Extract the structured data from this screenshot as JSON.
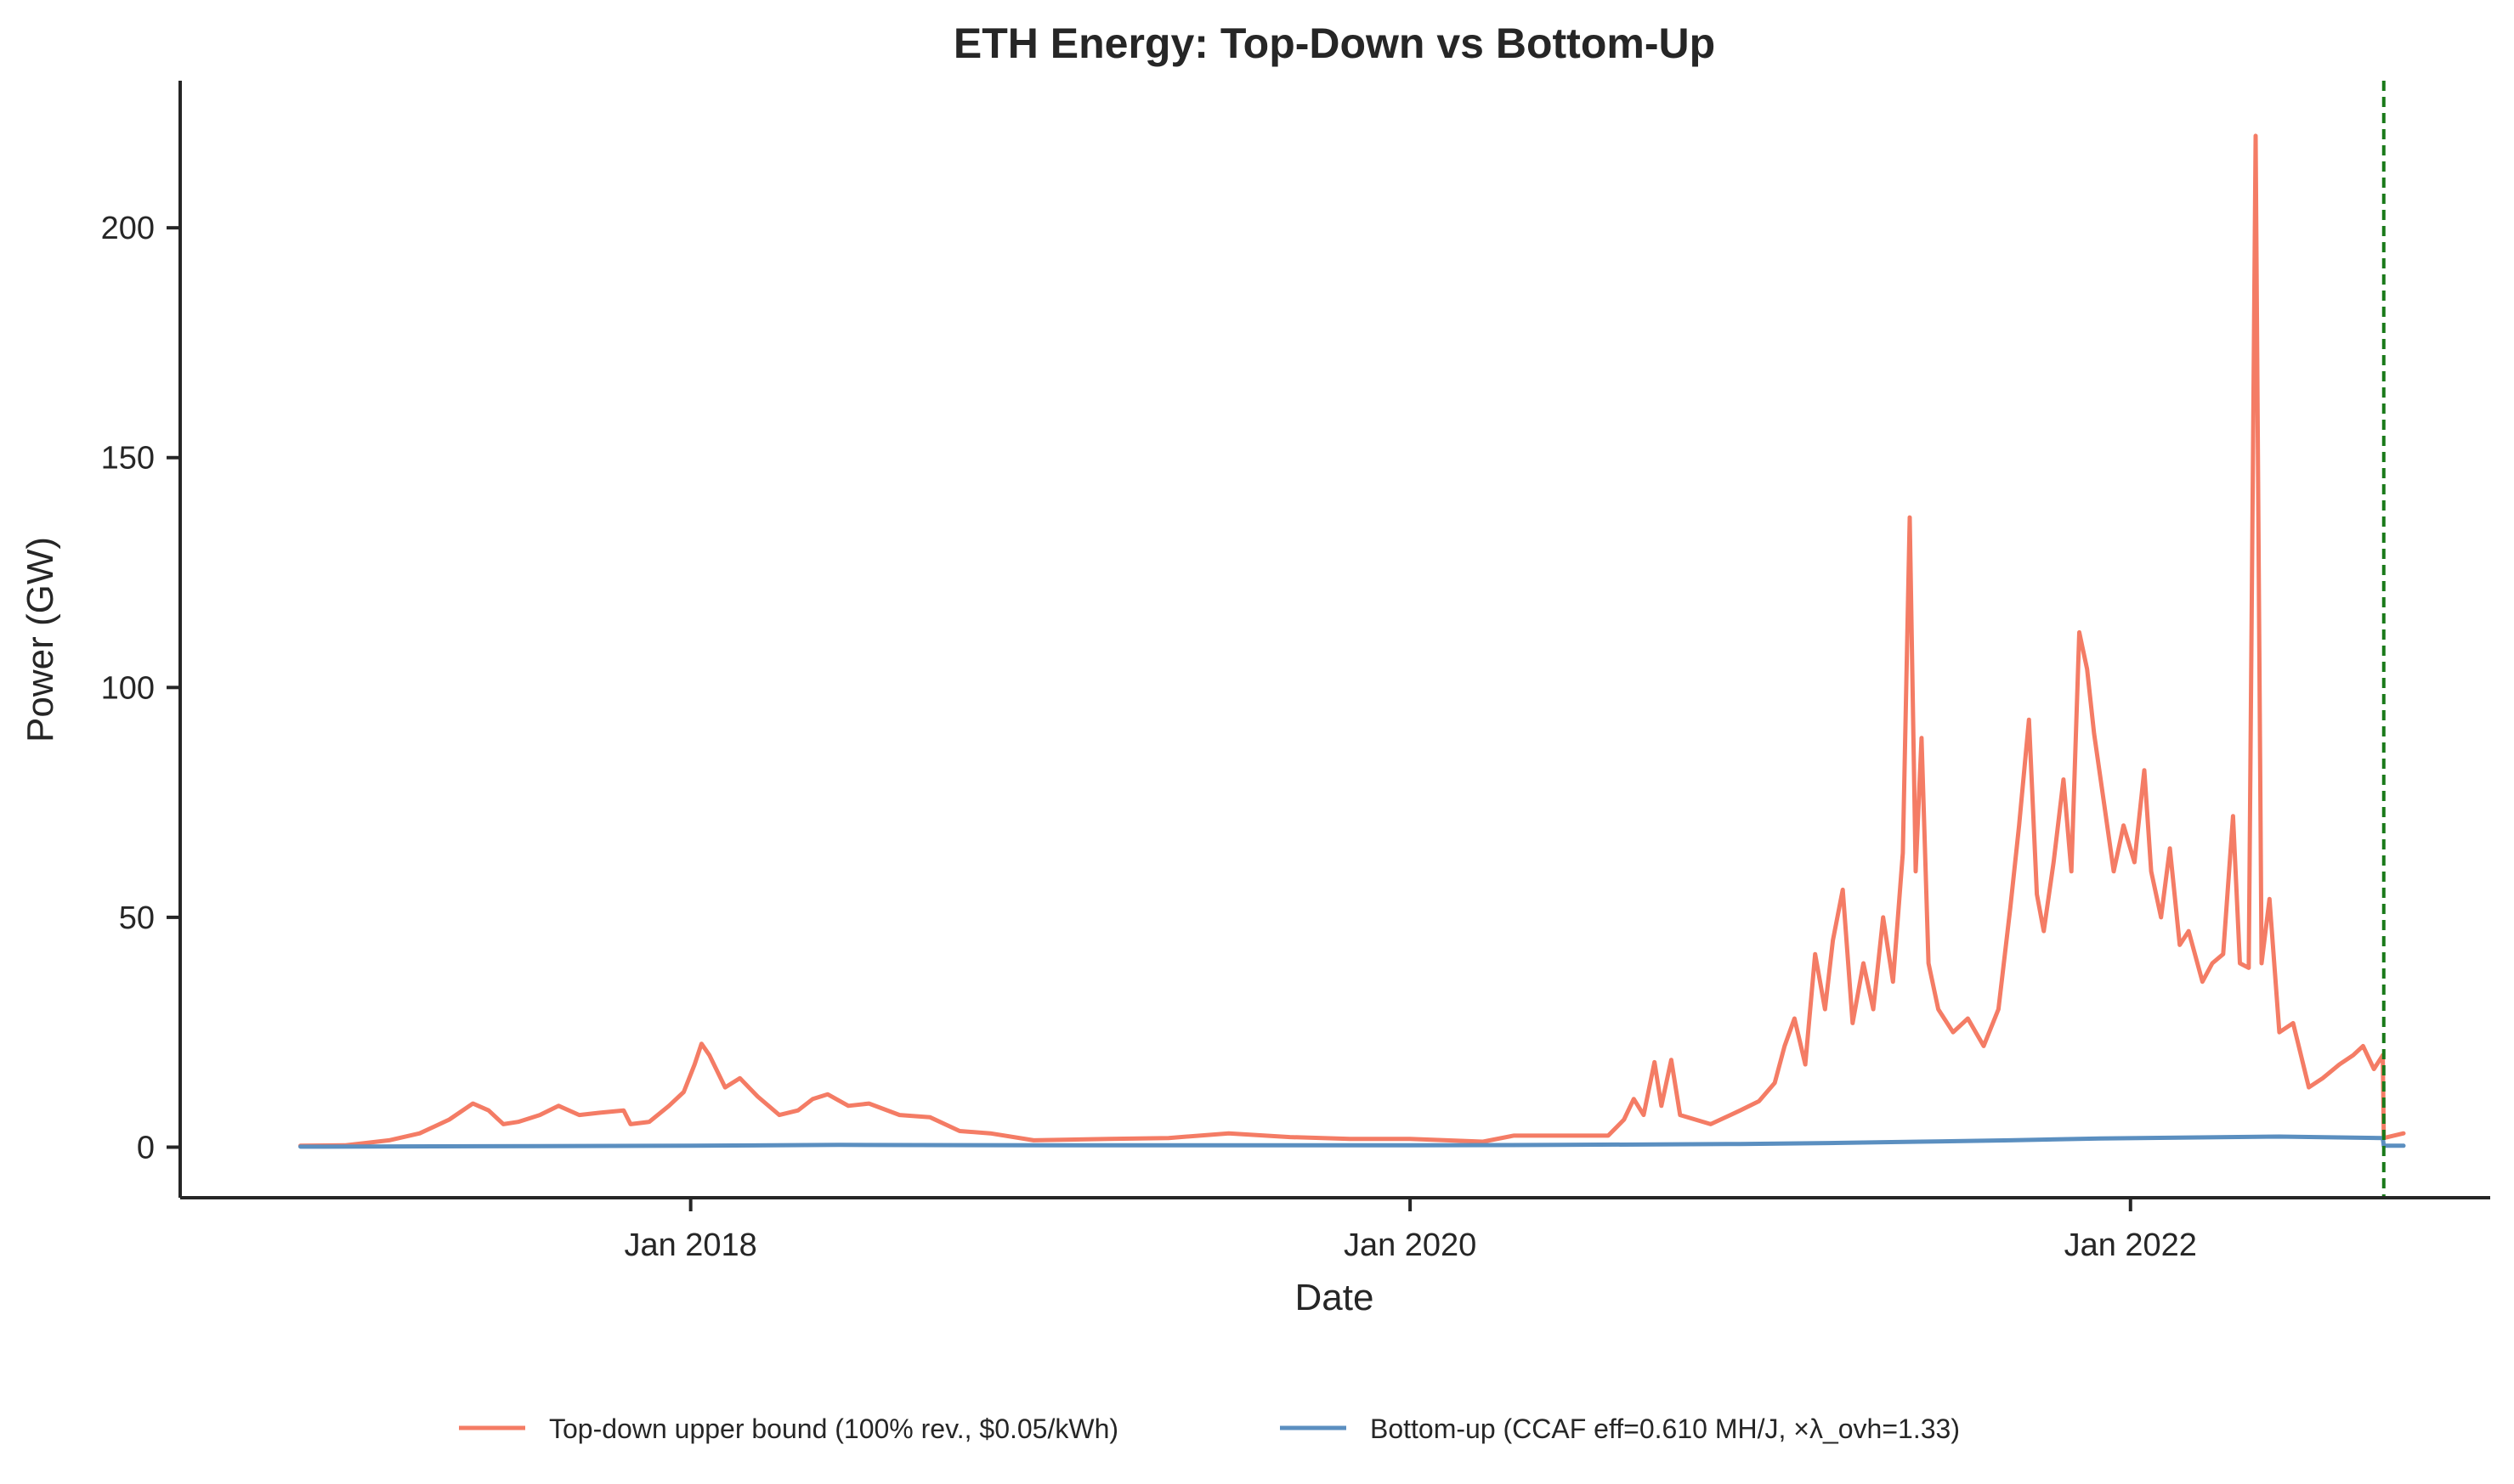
{
  "chart_data": {
    "type": "line",
    "title": "ETH Energy: Top-Down vs Bottom-Up",
    "xlabel": "Date",
    "ylabel": "Power (GW)",
    "x_range": [
      "2016-08-01",
      "2023-01-01"
    ],
    "ylim": [
      -11,
      232
    ],
    "x_ticks": [
      {
        "date": "2018-01-01",
        "label": "Jan 2018"
      },
      {
        "date": "2020-01-01",
        "label": "Jan 2020"
      },
      {
        "date": "2022-01-01",
        "label": "Jan 2022"
      }
    ],
    "y_ticks": [
      0,
      50,
      100,
      150,
      200
    ],
    "grid": false,
    "legend_position": "bottom-center",
    "vline": {
      "date": "2022-09-15",
      "color": "#1a7a1a",
      "style": "dashed"
    },
    "series": [
      {
        "name": "Top-down upper bound (100% rev., $0.05/kWh)",
        "color": "#f47c65",
        "points": [
          [
            "2016-12-01",
            0.3
          ],
          [
            "2017-01-15",
            0.4
          ],
          [
            "2017-02-01",
            0.8
          ],
          [
            "2017-03-01",
            1.5
          ],
          [
            "2017-04-01",
            3.0
          ],
          [
            "2017-05-01",
            6.0
          ],
          [
            "2017-05-25",
            9.5
          ],
          [
            "2017-06-10",
            8.0
          ],
          [
            "2017-06-25",
            5.0
          ],
          [
            "2017-07-10",
            5.5
          ],
          [
            "2017-08-01",
            7.0
          ],
          [
            "2017-08-20",
            9.0
          ],
          [
            "2017-09-10",
            7.0
          ],
          [
            "2017-10-01",
            7.5
          ],
          [
            "2017-10-25",
            8.0
          ],
          [
            "2017-11-01",
            5.0
          ],
          [
            "2017-11-20",
            5.5
          ],
          [
            "2017-12-10",
            9.0
          ],
          [
            "2017-12-25",
            12.0
          ],
          [
            "2018-01-05",
            18.0
          ],
          [
            "2018-01-12",
            22.5
          ],
          [
            "2018-01-20",
            20.0
          ],
          [
            "2018-02-05",
            13.0
          ],
          [
            "2018-02-20",
            15.0
          ],
          [
            "2018-03-10",
            11.0
          ],
          [
            "2018-04-01",
            7.0
          ],
          [
            "2018-04-20",
            8.0
          ],
          [
            "2018-05-05",
            10.5
          ],
          [
            "2018-05-20",
            11.5
          ],
          [
            "2018-06-10",
            9.0
          ],
          [
            "2018-07-01",
            9.5
          ],
          [
            "2018-08-01",
            7.0
          ],
          [
            "2018-09-01",
            6.5
          ],
          [
            "2018-10-01",
            3.5
          ],
          [
            "2018-11-01",
            3.0
          ],
          [
            "2018-12-15",
            1.5
          ],
          [
            "2019-03-01",
            1.8
          ],
          [
            "2019-05-01",
            2.0
          ],
          [
            "2019-07-01",
            3.0
          ],
          [
            "2019-09-01",
            2.2
          ],
          [
            "2019-11-01",
            1.8
          ],
          [
            "2020-01-01",
            1.8
          ],
          [
            "2020-03-15",
            1.2
          ],
          [
            "2020-04-15",
            2.5
          ],
          [
            "2020-06-01",
            2.5
          ],
          [
            "2020-07-20",
            2.5
          ],
          [
            "2020-08-05",
            6.0
          ],
          [
            "2020-08-15",
            10.5
          ],
          [
            "2020-08-25",
            7.0
          ],
          [
            "2020-09-05",
            18.5
          ],
          [
            "2020-09-12",
            9.0
          ],
          [
            "2020-09-22",
            19.0
          ],
          [
            "2020-10-01",
            7.0
          ],
          [
            "2020-11-01",
            5.0
          ],
          [
            "2020-12-01",
            8.0
          ],
          [
            "2020-12-20",
            10.0
          ],
          [
            "2021-01-05",
            14.0
          ],
          [
            "2021-01-15",
            22.0
          ],
          [
            "2021-01-25",
            28.0
          ],
          [
            "2021-02-05",
            18.0
          ],
          [
            "2021-02-15",
            42.0
          ],
          [
            "2021-02-25",
            30.0
          ],
          [
            "2021-03-05",
            45.0
          ],
          [
            "2021-03-15",
            56.0
          ],
          [
            "2021-03-25",
            27.0
          ],
          [
            "2021-04-05",
            40.0
          ],
          [
            "2021-04-15",
            30.0
          ],
          [
            "2021-04-25",
            50.0
          ],
          [
            "2021-05-05",
            36.0
          ],
          [
            "2021-05-15",
            64.0
          ],
          [
            "2021-05-22",
            137.0
          ],
          [
            "2021-05-28",
            60.0
          ],
          [
            "2021-06-03",
            89.0
          ],
          [
            "2021-06-10",
            40.0
          ],
          [
            "2021-06-20",
            30.0
          ],
          [
            "2021-07-05",
            25.0
          ],
          [
            "2021-07-20",
            28.0
          ],
          [
            "2021-08-05",
            22.0
          ],
          [
            "2021-08-20",
            30.0
          ],
          [
            "2021-09-01",
            52.0
          ],
          [
            "2021-09-10",
            70.0
          ],
          [
            "2021-09-20",
            93.0
          ],
          [
            "2021-09-28",
            55.0
          ],
          [
            "2021-10-05",
            47.0
          ],
          [
            "2021-10-15",
            62.0
          ],
          [
            "2021-10-25",
            80.0
          ],
          [
            "2021-11-02",
            60.0
          ],
          [
            "2021-11-10",
            112.0
          ],
          [
            "2021-11-18",
            104.0
          ],
          [
            "2021-11-25",
            90.0
          ],
          [
            "2021-12-05",
            75.0
          ],
          [
            "2021-12-15",
            60.0
          ],
          [
            "2021-12-25",
            70.0
          ],
          [
            "2022-01-05",
            62.0
          ],
          [
            "2022-01-15",
            82.0
          ],
          [
            "2022-01-22",
            60.0
          ],
          [
            "2022-02-01",
            50.0
          ],
          [
            "2022-02-10",
            65.0
          ],
          [
            "2022-02-20",
            44.0
          ],
          [
            "2022-03-01",
            47.0
          ],
          [
            "2022-03-15",
            36.0
          ],
          [
            "2022-03-25",
            40.0
          ],
          [
            "2022-04-05",
            42.0
          ],
          [
            "2022-04-15",
            72.0
          ],
          [
            "2022-04-22",
            40.0
          ],
          [
            "2022-05-01",
            39.0
          ],
          [
            "2022-05-08",
            220.0
          ],
          [
            "2022-05-14",
            40.0
          ],
          [
            "2022-05-22",
            54.0
          ],
          [
            "2022-06-01",
            25.0
          ],
          [
            "2022-06-15",
            27.0
          ],
          [
            "2022-07-01",
            13.0
          ],
          [
            "2022-07-15",
            15.0
          ],
          [
            "2022-08-01",
            18.0
          ],
          [
            "2022-08-15",
            20.0
          ],
          [
            "2022-08-25",
            22.0
          ],
          [
            "2022-09-05",
            17.0
          ],
          [
            "2022-09-14",
            20.0
          ],
          [
            "2022-09-15",
            2.0
          ],
          [
            "2022-09-25",
            2.5
          ],
          [
            "2022-10-05",
            3.0
          ]
        ]
      },
      {
        "name": "Bottom-up (CCAF eff=0.610 MH/J, ×λ_ovh=1.33)",
        "color": "#5b8fc0",
        "points": [
          [
            "2016-12-01",
            0.1
          ],
          [
            "2017-06-01",
            0.2
          ],
          [
            "2018-01-01",
            0.3
          ],
          [
            "2018-06-01",
            0.5
          ],
          [
            "2019-01-01",
            0.4
          ],
          [
            "2019-06-01",
            0.4
          ],
          [
            "2020-01-01",
            0.4
          ],
          [
            "2020-06-01",
            0.5
          ],
          [
            "2020-12-01",
            0.7
          ],
          [
            "2021-03-01",
            0.9
          ],
          [
            "2021-06-01",
            1.2
          ],
          [
            "2021-09-01",
            1.5
          ],
          [
            "2021-12-01",
            1.9
          ],
          [
            "2022-03-01",
            2.1
          ],
          [
            "2022-06-01",
            2.3
          ],
          [
            "2022-09-14",
            2.0
          ],
          [
            "2022-09-15",
            0.3
          ],
          [
            "2022-10-05",
            0.3
          ]
        ]
      }
    ]
  }
}
